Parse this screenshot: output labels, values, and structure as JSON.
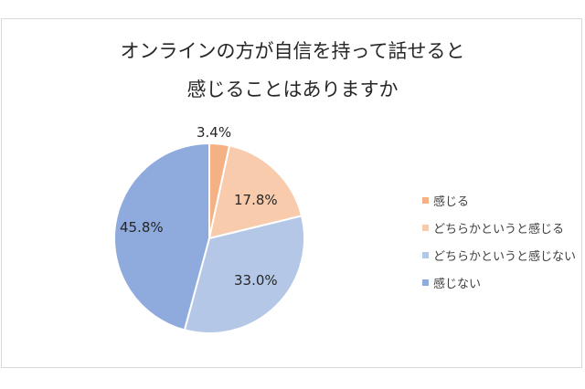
{
  "title": {
    "line1": "オンラインの方が自信を持って話せると",
    "line2": "感じることはありますか"
  },
  "chart_data": {
    "type": "pie",
    "title": "オンラインの方が自信を持って話せると感じることはありますか",
    "categories": [
      "感じる",
      "どちらかというと感じる",
      "どちらかというと感じない",
      "感じない"
    ],
    "values": [
      3.4,
      17.8,
      33.0,
      45.8
    ],
    "labels": [
      "3.4%",
      "17.8%",
      "33.0%",
      "45.8%"
    ],
    "colors": [
      "#f4b183",
      "#f8cbad",
      "#b4c7e7",
      "#8faadc"
    ],
    "legend_position": "right",
    "start_angle": "12 o'clock, clockwise"
  },
  "legend": {
    "items": [
      {
        "label": "感じる",
        "color": "#f4b183"
      },
      {
        "label": "どちらかというと感じる",
        "color": "#f8cbad"
      },
      {
        "label": "どちらかというと感じない",
        "color": "#b4c7e7"
      },
      {
        "label": "感じない",
        "color": "#8faadc"
      }
    ]
  }
}
